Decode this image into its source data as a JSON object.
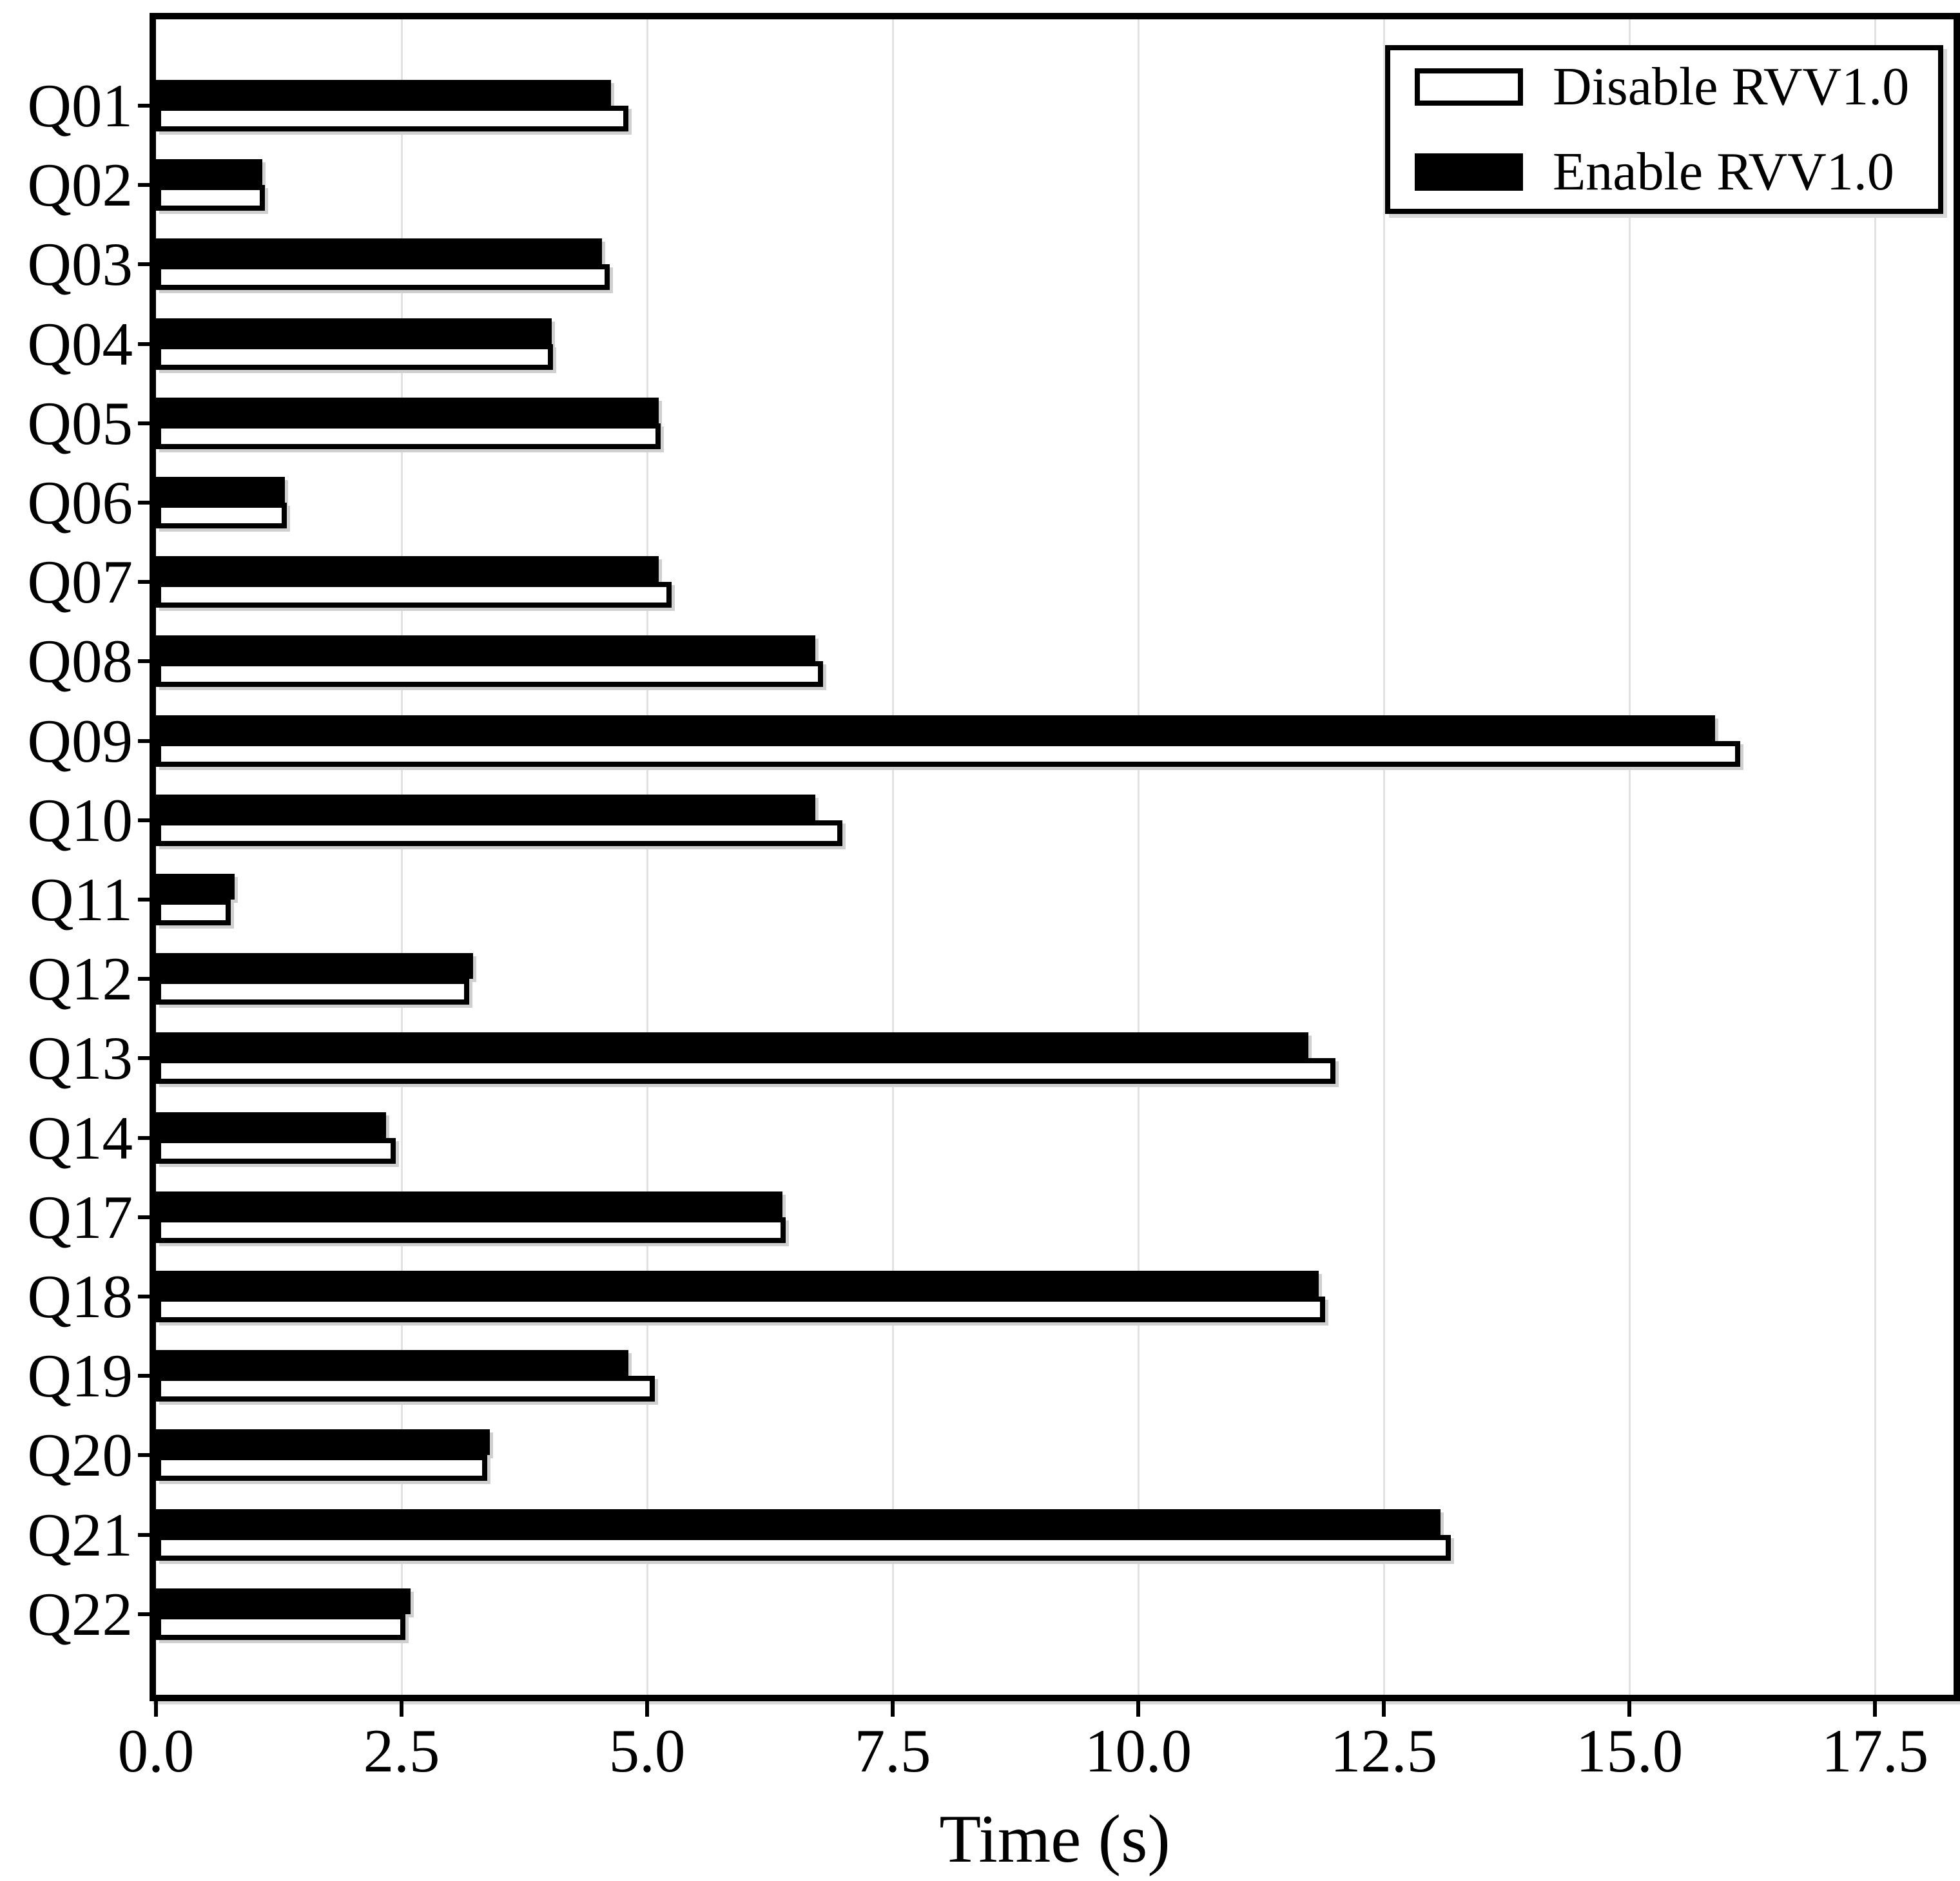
{
  "chart_data": {
    "type": "bar",
    "orientation": "horizontal",
    "title": "",
    "xlabel": "Time (s)",
    "ylabel": "",
    "categories": [
      "Q01",
      "Q02",
      "Q03",
      "Q04",
      "Q05",
      "Q06",
      "Q07",
      "Q08",
      "Q09",
      "Q10",
      "Q11",
      "Q12",
      "Q13",
      "Q14",
      "Q17",
      "Q18",
      "Q19",
      "Q20",
      "Q21",
      "Q22"
    ],
    "series": [
      {
        "name": "Disable RVV1.0",
        "fill": "#ffffff",
        "edge": "#000000",
        "values": [
          4.81,
          1.11,
          4.62,
          4.04,
          5.14,
          1.33,
          5.25,
          6.79,
          16.13,
          6.99,
          0.76,
          3.19,
          12.01,
          2.44,
          6.41,
          11.9,
          5.08,
          3.37,
          13.18,
          2.54
        ]
      },
      {
        "name": "Enable RVV1.0",
        "fill": "#000000",
        "edge": "#000000",
        "values": [
          4.63,
          1.08,
          4.54,
          4.03,
          5.12,
          1.31,
          5.12,
          6.71,
          15.87,
          6.71,
          0.8,
          3.23,
          11.73,
          2.34,
          6.38,
          11.84,
          4.81,
          3.4,
          13.08,
          2.59
        ]
      }
    ],
    "row_order_top_to_bottom": [
      "Enable RVV1.0",
      "Disable RVV1.0"
    ],
    "x_ticks": [
      0.0,
      2.5,
      5.0,
      7.5,
      10.0,
      12.5,
      15.0,
      17.5
    ],
    "x_tick_labels": [
      "0.0",
      "2.5",
      "5.0",
      "7.5",
      "10.0",
      "12.5",
      "15.0",
      "17.5"
    ],
    "xlim": [
      0,
      18.3
    ],
    "grid": "vertical",
    "grid_color": "#e2e2e2",
    "legend_position": "upper right",
    "colors": {
      "bar_edge": "#000000",
      "axis": "#000000",
      "background": "#ffffff"
    }
  }
}
